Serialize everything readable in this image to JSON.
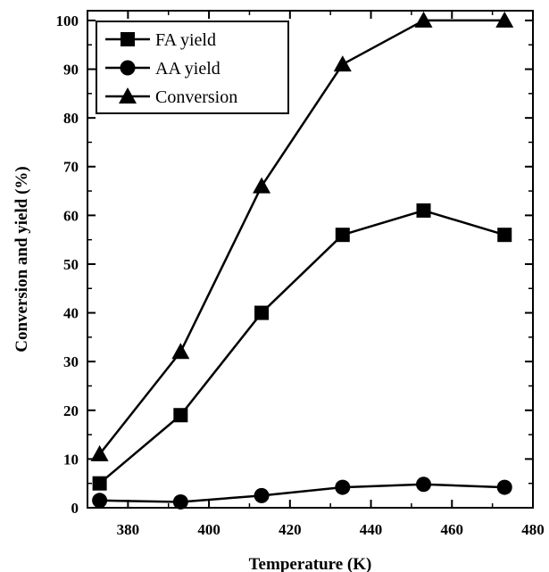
{
  "chart_data": {
    "type": "line",
    "xlabel": "Temperature (K)",
    "ylabel": "Conversion and yield (%)",
    "xlim": [
      370,
      480
    ],
    "ylim": [
      0,
      102
    ],
    "x_ticks": [
      380,
      400,
      420,
      440,
      460,
      480
    ],
    "y_ticks": [
      0,
      10,
      20,
      30,
      40,
      50,
      60,
      70,
      80,
      90,
      100
    ],
    "x": [
      373,
      393,
      413,
      433,
      453,
      473
    ],
    "grid": false,
    "legend_position": "top-left",
    "series": [
      {
        "name": "FA yield",
        "marker": "square",
        "values": [
          5,
          19,
          40,
          56,
          61,
          56
        ]
      },
      {
        "name": "AA yield",
        "marker": "circle",
        "values": [
          1.5,
          1.2,
          2.5,
          4.2,
          4.8,
          4.2
        ]
      },
      {
        "name": "Conversion",
        "marker": "triangle",
        "values": [
          11,
          32,
          66,
          91,
          100,
          100
        ]
      }
    ]
  }
}
